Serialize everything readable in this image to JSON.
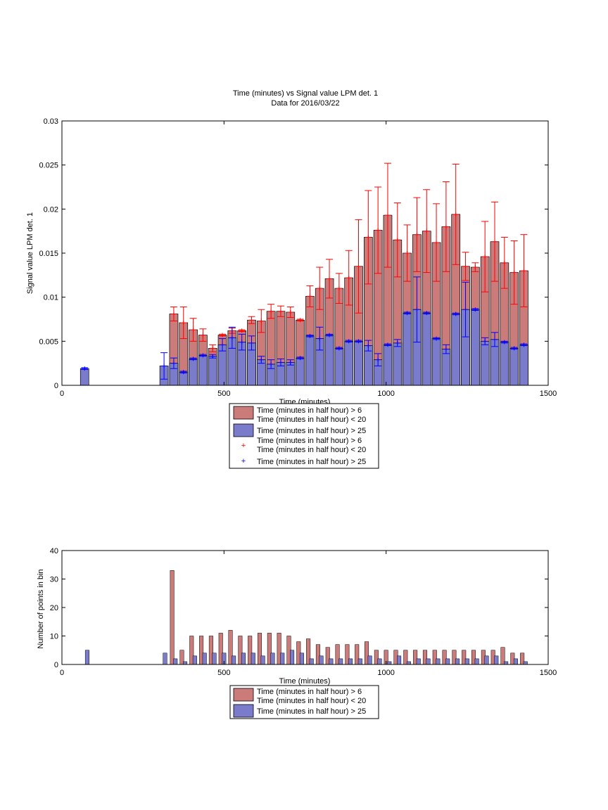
{
  "chart_data": [
    {
      "type": "bar",
      "title": "Time (minutes) vs Signal value LPM det. 1",
      "subtitle": "Data for 2016/03/22",
      "xlabel": "Time (minutes)",
      "ylabel": "Signal value LPM det. 1",
      "xlim": [
        0,
        1500
      ],
      "ylim": [
        0,
        0.03
      ],
      "xticks": [
        "0",
        "500",
        "1000",
        "1500"
      ],
      "yticks": [
        "0",
        "0.005",
        "0.01",
        "0.015",
        "0.02",
        "0.025",
        "0.03"
      ],
      "grid": false,
      "legend": {
        "position": "below",
        "entries": [
          {
            "label": "Time (minutes in half hour) > 6\nTime (minutes in half hour) < 20",
            "style": "bar",
            "color": "#cc7b7b"
          },
          {
            "label": "Time (minutes in half hour) > 25",
            "style": "bar",
            "color": "#7b7bcc"
          },
          {
            "label": "Time (minutes in half hour) > 6\nTime (minutes in half hour) < 20",
            "style": "marker",
            "color": "#ff0000"
          },
          {
            "label": "Time (minutes in half hour) > 25",
            "style": "marker",
            "color": "#0000ff"
          }
        ]
      },
      "series": [
        {
          "name": "Time (minutes in half hour) > 6 / Time (minutes in half hour) < 20",
          "color": "#cc7b7b",
          "err_color": "#ff0000",
          "x": [
            345,
            375,
            405,
            435,
            465,
            495,
            525,
            555,
            585,
            615,
            645,
            675,
            705,
            735,
            765,
            795,
            825,
            855,
            885,
            915,
            945,
            975,
            1005,
            1035,
            1065,
            1095,
            1125,
            1155,
            1185,
            1215,
            1245,
            1275,
            1305,
            1335,
            1365,
            1395,
            1425
          ],
          "values": [
            0.0081,
            0.0071,
            0.0063,
            0.0057,
            0.0042,
            0.0057,
            0.0062,
            0.0062,
            0.0074,
            0.0073,
            0.0084,
            0.0084,
            0.0083,
            0.0074,
            0.0101,
            0.011,
            0.0121,
            0.011,
            0.0122,
            0.0135,
            0.0168,
            0.0176,
            0.0193,
            0.0165,
            0.015,
            0.0171,
            0.0175,
            0.0162,
            0.018,
            0.0194,
            0.0135,
            0.0134,
            0.0146,
            0.0163,
            0.0139,
            0.0128,
            0.013
          ],
          "err": [
            0.0008,
            0.0018,
            0.0013,
            0.0007,
            0.0004,
            0.0001,
            0.0003,
            0.0001,
            0.0004,
            0.0013,
            0.0008,
            0.0006,
            0.0006,
            0.0001,
            0.0012,
            0.0024,
            0.0022,
            0.0017,
            0.0031,
            0.0053,
            0.0053,
            0.0049,
            0.0059,
            0.0042,
            0.0032,
            0.0042,
            0.0047,
            0.0044,
            0.0051,
            0.0057,
            0.0016,
            0.0005,
            0.004,
            0.0045,
            0.0029,
            0.0036,
            0.0041
          ]
        },
        {
          "name": "Time (minutes in half hour) > 25",
          "color": "#7b7bcc",
          "err_color": "#0000ff",
          "x": [
            70,
            315,
            345,
            375,
            405,
            435,
            465,
            495,
            525,
            555,
            585,
            615,
            645,
            675,
            705,
            735,
            765,
            795,
            825,
            855,
            885,
            915,
            945,
            975,
            1005,
            1035,
            1065,
            1095,
            1125,
            1155,
            1185,
            1215,
            1245,
            1275,
            1305,
            1335,
            1365,
            1395,
            1425
          ],
          "values": [
            0.0019,
            0.0022,
            0.0025,
            0.0015,
            0.003,
            0.0034,
            0.0033,
            0.0046,
            0.0054,
            0.0049,
            0.0048,
            0.0029,
            0.0024,
            0.0026,
            0.0026,
            0.0031,
            0.0056,
            0.0053,
            0.0057,
            0.0042,
            0.005,
            0.005,
            0.0045,
            0.0029,
            0.0046,
            0.0048,
            0.0082,
            0.0086,
            0.0082,
            0.0053,
            0.0041,
            0.0081,
            0.0086,
            0.0086,
            0.005,
            0.0052,
            0.0049,
            0.0042,
            0.0046
          ],
          "err": [
            0.0001,
            0.0015,
            0.0006,
            0.0001,
            0.0001,
            0.0001,
            0.0002,
            0.0007,
            0.0012,
            0.0009,
            0.0008,
            0.0004,
            0.0005,
            0.0004,
            0.0003,
            0.0001,
            0.0001,
            0.0013,
            0.0001,
            0.0001,
            0.0001,
            0.0001,
            0.0006,
            0.0007,
            0.0001,
            0.0004,
            0.0001,
            0.0037,
            0.0001,
            0.0001,
            0.0005,
            0.0001,
            0.0031,
            0.0001,
            0.0004,
            0.0008,
            0.0001,
            0.0001,
            0.0001
          ]
        }
      ]
    },
    {
      "type": "bar",
      "xlabel": "Time (minutes)",
      "ylabel": "Number of points in bin",
      "xlim": [
        0,
        1500
      ],
      "ylim": [
        0,
        40
      ],
      "xticks": [
        "0",
        "500",
        "1000",
        "1500"
      ],
      "yticks": [
        "0",
        "10",
        "20",
        "30",
        "40"
      ],
      "grid": false,
      "legend": {
        "position": "below",
        "entries": [
          {
            "label": "Time (minutes in half hour) > 6\nTime (minutes in half hour) < 20",
            "style": "bar",
            "color": "#cc7b7b"
          },
          {
            "label": "Time (minutes in half hour) > 25",
            "style": "bar",
            "color": "#7b7bcc"
          }
        ]
      },
      "series": [
        {
          "name": "Time (minutes in half hour) > 6 / Time (minutes in half hour) < 20",
          "color": "#cc7b7b",
          "x": [
            340,
            370,
            400,
            430,
            460,
            490,
            520,
            550,
            580,
            610,
            640,
            670,
            700,
            730,
            760,
            790,
            820,
            850,
            880,
            910,
            940,
            970,
            1000,
            1030,
            1060,
            1090,
            1120,
            1150,
            1180,
            1210,
            1240,
            1270,
            1300,
            1330,
            1360,
            1390,
            1420
          ],
          "values": [
            33,
            5,
            10,
            10,
            10,
            11,
            12,
            10,
            10,
            11,
            11,
            11,
            10,
            8,
            9,
            7,
            6,
            7,
            7,
            7,
            8,
            5,
            5,
            5,
            5,
            5,
            5,
            5,
            5,
            5,
            5,
            5,
            5,
            5,
            6,
            4,
            4
          ]
        },
        {
          "name": "Time (minutes in half hour) > 25",
          "color": "#7b7bcc",
          "x": [
            78,
            318,
            350,
            380,
            410,
            440,
            470,
            500,
            530,
            560,
            590,
            620,
            650,
            680,
            710,
            740,
            770,
            800,
            830,
            860,
            890,
            920,
            950,
            980,
            1010,
            1040,
            1070,
            1100,
            1130,
            1160,
            1190,
            1220,
            1250,
            1280,
            1310,
            1340,
            1370,
            1400,
            1430
          ],
          "values": [
            5,
            4,
            2,
            1,
            3,
            4,
            4,
            4,
            3,
            4,
            4,
            3,
            4,
            4,
            5,
            4,
            2,
            3,
            2,
            2,
            2,
            2,
            3,
            2,
            1,
            3,
            1,
            2,
            2,
            2,
            2,
            2,
            2,
            2,
            3,
            3,
            1,
            2,
            1
          ]
        }
      ]
    }
  ]
}
